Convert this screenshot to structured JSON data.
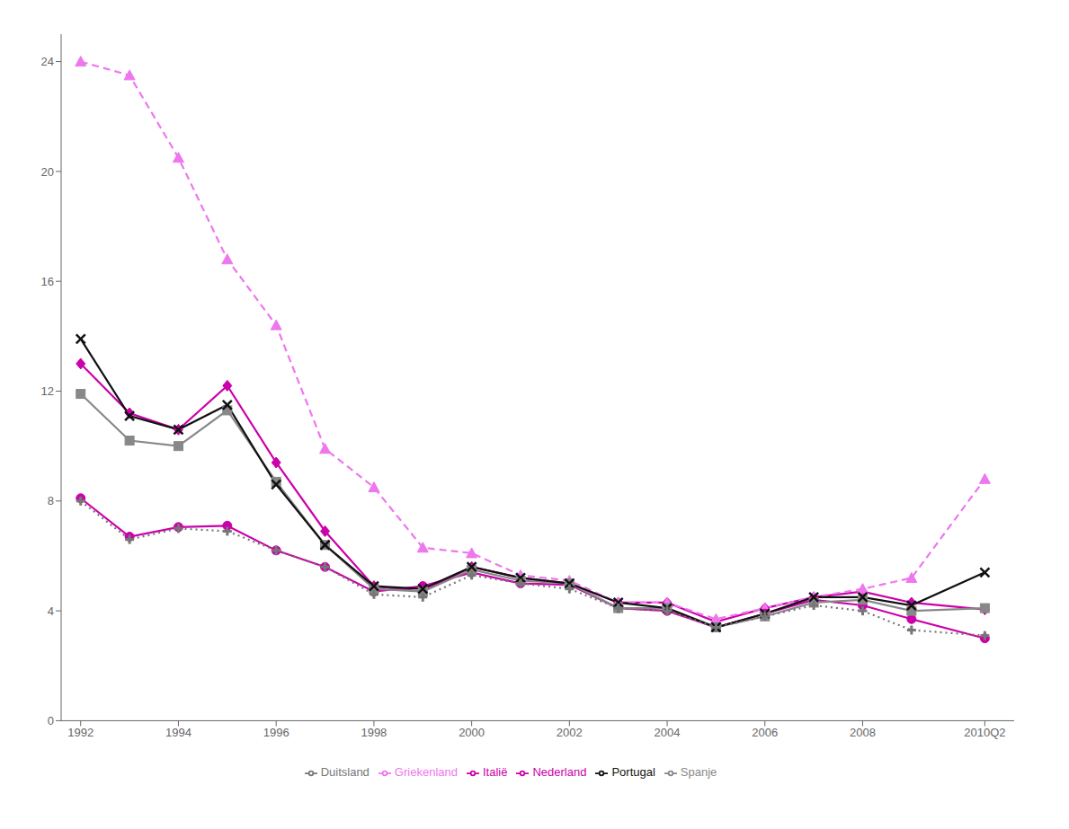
{
  "chart_data": {
    "type": "line",
    "x": [
      1992,
      1993,
      1994,
      1995,
      1996,
      1997,
      1998,
      1999,
      2000,
      2001,
      2002,
      2003,
      2004,
      2005,
      2006,
      2007,
      2008,
      2009,
      2010.5
    ],
    "series": [
      {
        "name": "Italië",
        "color": "#CC00AA",
        "marker": "diamond",
        "line_style": "solid",
        "values": [
          13.0,
          11.2,
          10.6,
          12.2,
          9.4,
          6.9,
          4.9,
          4.7,
          5.6,
          5.2,
          5.0,
          4.3,
          4.3,
          3.6,
          4.1,
          4.5,
          4.7,
          4.3,
          4.05
        ]
      },
      {
        "name": "Griekenland",
        "color": "#EE77EE",
        "marker": "triangle",
        "line_style": "dashed",
        "values": [
          24.0,
          23.5,
          20.5,
          16.8,
          14.4,
          9.9,
          8.5,
          6.3,
          6.1,
          5.3,
          5.1,
          4.3,
          4.3,
          3.7,
          4.1,
          4.5,
          4.8,
          5.2,
          8.8
        ]
      },
      {
        "name": "Nederland",
        "color": "#CC00AA",
        "marker": "circle",
        "line_style": "solid",
        "values": [
          8.1,
          6.7,
          7.05,
          7.1,
          6.2,
          5.6,
          4.7,
          4.9,
          5.4,
          5.0,
          4.95,
          4.1,
          4.0,
          3.4,
          3.9,
          4.4,
          4.2,
          3.7,
          3.0
        ]
      },
      {
        "name": "Spanje",
        "color": "#888888",
        "marker": "square",
        "line_style": "solid",
        "values": [
          11.9,
          10.2,
          10.0,
          11.3,
          8.7,
          6.4,
          4.8,
          4.7,
          5.5,
          5.1,
          5.0,
          4.1,
          4.1,
          3.4,
          3.8,
          4.3,
          4.4,
          4.0,
          4.1
        ]
      },
      {
        "name": "Portugal",
        "color": "#111111",
        "marker": "x",
        "line_style": "solid",
        "values": [
          13.9,
          11.1,
          10.6,
          11.5,
          8.6,
          6.4,
          4.9,
          4.8,
          5.6,
          5.2,
          5.0,
          4.3,
          4.1,
          3.4,
          3.9,
          4.5,
          4.5,
          4.2,
          5.4
        ]
      },
      {
        "name": "Duitsland",
        "color": "#777777",
        "marker": "plus",
        "line_style": "dotted",
        "values": [
          8.0,
          6.6,
          7.0,
          6.9,
          6.2,
          5.6,
          4.6,
          4.5,
          5.3,
          5.0,
          4.8,
          4.1,
          4.0,
          3.4,
          3.8,
          4.2,
          4.0,
          3.3,
          3.1
        ]
      }
    ],
    "xlim": [
      1991.6,
      2011.1
    ],
    "xticks": [
      1992,
      1994,
      1996,
      1998,
      2000,
      2002,
      2004,
      2006,
      2008,
      {
        "value": 2010.5,
        "label": "2010Q2"
      }
    ],
    "ylim": [
      0,
      25
    ],
    "yticks": [
      0,
      4,
      8,
      12,
      16,
      20,
      24
    ],
    "grid": false,
    "legend": "bottom"
  }
}
